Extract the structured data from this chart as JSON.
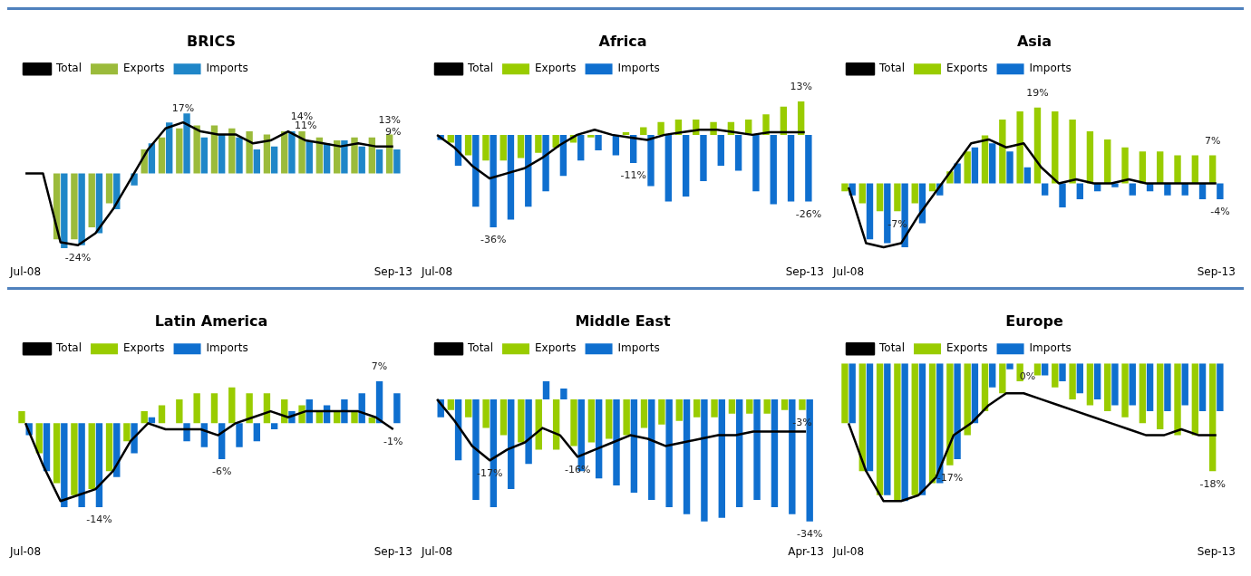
{
  "chart_data": [
    {
      "type": "bar",
      "title": "BRICS",
      "categories": [
        "Jul-08",
        null,
        null,
        null,
        null,
        null,
        null,
        null,
        null,
        null,
        null,
        null,
        null,
        null,
        null,
        null,
        null,
        null,
        null,
        null,
        null,
        "Sep-13"
      ],
      "legend": "top left",
      "grid": false,
      "tick_labels": "x",
      "series": [
        {
          "name": "Total",
          "type": "line",
          "color": "#000000",
          "values": [
            0,
            0,
            -23,
            -24,
            -20,
            -12,
            -2,
            8,
            15,
            17,
            14,
            13,
            13,
            10,
            11,
            14,
            11,
            10,
            9,
            10,
            9,
            9
          ],
          "value_labels": [
            null,
            null,
            null,
            "-24%",
            null,
            null,
            null,
            null,
            null,
            "17%",
            null,
            null,
            null,
            null,
            null,
            null,
            "11%",
            null,
            null,
            null,
            null,
            "9%"
          ]
        },
        {
          "name": "Exports",
          "color": "#9bbb3b",
          "values": [
            0,
            0,
            -22,
            -22,
            -18,
            -10,
            0,
            8,
            12,
            15,
            16,
            16,
            15,
            14,
            13,
            14,
            14,
            12,
            11,
            12,
            12,
            13
          ],
          "value_labels": [
            null,
            null,
            null,
            null,
            null,
            null,
            null,
            null,
            null,
            null,
            null,
            null,
            null,
            null,
            null,
            null,
            "14%",
            null,
            null,
            null,
            null,
            "13%"
          ]
        },
        {
          "name": "Imports",
          "color": "#1f86c8",
          "values": [
            0,
            0,
            -25,
            -24,
            -20,
            -12,
            -4,
            10,
            17,
            20,
            12,
            13,
            12,
            8,
            9,
            14,
            11,
            10,
            11,
            9,
            8,
            8
          ]
        }
      ]
    },
    {
      "type": "bar",
      "title": "Africa",
      "categories": [
        "Jul-08",
        null,
        null,
        null,
        null,
        null,
        null,
        null,
        null,
        null,
        null,
        null,
        null,
        null,
        null,
        null,
        null,
        null,
        null,
        null,
        null,
        "Sep-13"
      ],
      "legend": "top left",
      "grid": false,
      "tick_labels": "x",
      "series": [
        {
          "name": "Total",
          "type": "line",
          "color": "#000000",
          "values": [
            0,
            -5,
            -12,
            -17,
            -15,
            -13,
            -9,
            -4,
            0,
            2,
            0,
            -1,
            -2,
            0,
            1,
            2,
            2,
            1,
            0,
            1,
            1,
            1
          ]
        },
        {
          "name": "Exports",
          "color": "#99cc00",
          "values": [
            0,
            -3,
            -8,
            -10,
            -10,
            -9,
            -7,
            -5,
            -3,
            -1,
            0,
            1,
            3,
            5,
            6,
            6,
            5,
            5,
            6,
            8,
            11,
            13
          ],
          "value_labels": [
            null,
            null,
            null,
            null,
            null,
            null,
            null,
            null,
            null,
            null,
            null,
            null,
            null,
            null,
            null,
            null,
            null,
            null,
            null,
            null,
            null,
            "13%"
          ]
        },
        {
          "name": "Imports",
          "color": "#0f6fcf",
          "values": [
            -2,
            -12,
            -28,
            -36,
            -33,
            -28,
            -22,
            -16,
            -10,
            -6,
            -8,
            -11,
            -20,
            -26,
            -24,
            -18,
            -12,
            -14,
            -22,
            -27,
            -26,
            -26
          ],
          "value_labels": [
            null,
            null,
            null,
            "-36%",
            null,
            null,
            null,
            null,
            null,
            null,
            null,
            "-11%",
            null,
            null,
            null,
            null,
            null,
            null,
            null,
            null,
            null,
            "-26%"
          ]
        }
      ]
    },
    {
      "type": "bar",
      "title": "Asia",
      "categories": [
        "Jul-08",
        null,
        null,
        null,
        null,
        null,
        null,
        null,
        null,
        null,
        null,
        null,
        null,
        null,
        null,
        null,
        null,
        null,
        null,
        null,
        null,
        "Sep-13"
      ],
      "legend": "top left",
      "grid": false,
      "tick_labels": "x",
      "series": [
        {
          "name": "Total",
          "type": "line",
          "color": "#000000",
          "values": [
            -1,
            -15,
            -16,
            -15,
            -8,
            -2,
            4,
            10,
            11,
            9,
            10,
            4,
            0,
            1,
            0,
            0,
            1,
            0,
            0,
            0,
            0,
            0
          ]
        },
        {
          "name": "Exports",
          "color": "#99cc00",
          "values": [
            -2,
            -5,
            -7,
            -7,
            -5,
            -2,
            3,
            8,
            12,
            16,
            18,
            19,
            18,
            16,
            13,
            11,
            9,
            8,
            8,
            7,
            7,
            7
          ],
          "value_labels": [
            null,
            null,
            null,
            "-7%",
            null,
            null,
            null,
            null,
            null,
            null,
            null,
            "19%",
            null,
            null,
            null,
            null,
            null,
            null,
            null,
            null,
            null,
            "7%"
          ]
        },
        {
          "name": "Imports",
          "color": "#0f6fcf",
          "values": [
            -3,
            -14,
            -15,
            -16,
            -10,
            -3,
            5,
            9,
            10,
            8,
            4,
            -3,
            -6,
            -4,
            -2,
            -1,
            -3,
            -2,
            -3,
            -3,
            -4,
            -4
          ],
          "value_labels": [
            null,
            null,
            null,
            null,
            null,
            null,
            null,
            null,
            null,
            null,
            null,
            null,
            null,
            null,
            null,
            null,
            null,
            null,
            null,
            null,
            null,
            "-4%"
          ]
        }
      ]
    },
    {
      "type": "bar",
      "title": "Latin America",
      "categories": [
        "Jul-08",
        null,
        null,
        null,
        null,
        null,
        null,
        null,
        null,
        null,
        null,
        null,
        null,
        null,
        null,
        null,
        null,
        null,
        null,
        null,
        null,
        "Sep-13"
      ],
      "legend": "top left",
      "grid": false,
      "tick_labels": "x",
      "series": [
        {
          "name": "Total",
          "type": "line",
          "color": "#000000",
          "values": [
            0,
            -7,
            -13,
            -12,
            -11,
            -8,
            -3,
            0,
            -1,
            -1,
            -1,
            -2,
            0,
            1,
            2,
            1,
            2,
            2,
            2,
            2,
            1,
            -1
          ],
          "value_labels": [
            null,
            null,
            null,
            null,
            null,
            null,
            null,
            null,
            null,
            null,
            null,
            null,
            null,
            null,
            null,
            null,
            null,
            null,
            null,
            null,
            null,
            "-1%"
          ]
        },
        {
          "name": "Exports",
          "color": "#99cc00",
          "values": [
            2,
            -5,
            -10,
            -12,
            -11,
            -8,
            -3,
            2,
            3,
            4,
            5,
            5,
            6,
            5,
            5,
            4,
            3,
            2,
            2,
            2,
            1,
            0
          ]
        },
        {
          "name": "Imports",
          "color": "#0f6fcf",
          "values": [
            -2,
            -8,
            -14,
            -14,
            -14,
            -9,
            -5,
            1,
            0,
            -3,
            -4,
            -6,
            -4,
            -3,
            -1,
            2,
            4,
            3,
            4,
            5,
            7,
            5
          ],
          "value_labels": [
            null,
            null,
            null,
            null,
            "-14%",
            null,
            null,
            null,
            null,
            null,
            null,
            "-6%",
            null,
            null,
            null,
            null,
            null,
            null,
            null,
            null,
            "7%",
            null
          ]
        }
      ]
    },
    {
      "type": "bar",
      "title": "Middle East",
      "categories": [
        "Jul-08",
        null,
        null,
        null,
        null,
        null,
        null,
        null,
        null,
        null,
        null,
        null,
        null,
        null,
        null,
        null,
        null,
        null,
        null,
        null,
        null,
        "Apr-13"
      ],
      "legend": "top left",
      "grid": false,
      "tick_labels": "x",
      "series": [
        {
          "name": "Total",
          "type": "line",
          "color": "#000000",
          "values": [
            0,
            -6,
            -13,
            -17,
            -14,
            -12,
            -8,
            -10,
            -16,
            -14,
            -12,
            -10,
            -11,
            -13,
            -12,
            -11,
            -10,
            -10,
            -9,
            -9,
            -9,
            -9
          ],
          "value_labels": [
            null,
            null,
            null,
            "-17%",
            null,
            null,
            null,
            null,
            "-16%",
            null,
            null,
            null,
            null,
            null,
            null,
            null,
            null,
            null,
            null,
            null,
            null,
            null
          ]
        },
        {
          "name": "Exports",
          "color": "#99cc00",
          "values": [
            0,
            -3,
            -5,
            -8,
            -10,
            -12,
            -14,
            -14,
            -13,
            -12,
            -11,
            -10,
            -8,
            -7,
            -6,
            -5,
            -5,
            -4,
            -4,
            -4,
            -3,
            -3
          ],
          "value_labels": [
            null,
            null,
            null,
            null,
            null,
            null,
            null,
            null,
            null,
            null,
            null,
            null,
            null,
            null,
            null,
            null,
            null,
            null,
            null,
            null,
            null,
            "-3%"
          ]
        },
        {
          "name": "Imports",
          "color": "#0f6fcf",
          "values": [
            -5,
            -17,
            -28,
            -30,
            -25,
            -18,
            5,
            3,
            -20,
            -22,
            -24,
            -26,
            -28,
            -30,
            -32,
            -34,
            -33,
            -30,
            -28,
            -30,
            -32,
            -34
          ],
          "value_labels": [
            null,
            null,
            null,
            null,
            null,
            null,
            null,
            null,
            null,
            null,
            null,
            null,
            null,
            null,
            null,
            null,
            null,
            null,
            null,
            null,
            null,
            "-34%"
          ]
        }
      ]
    },
    {
      "type": "bar",
      "title": "Europe",
      "categories": [
        "Jul-08",
        null,
        null,
        null,
        null,
        null,
        null,
        null,
        null,
        null,
        null,
        null,
        null,
        null,
        null,
        null,
        null,
        null,
        null,
        null,
        null,
        "Sep-13"
      ],
      "legend": "top left",
      "grid": false,
      "tick_labels": "x",
      "series": [
        {
          "name": "Total",
          "type": "line",
          "color": "#000000",
          "values": [
            -10,
            -18,
            -23,
            -23,
            -22,
            -19,
            -12,
            -10,
            -7,
            -5,
            -5,
            -6,
            -7,
            -8,
            -9,
            -10,
            -11,
            -12,
            -12,
            -11,
            -12,
            -12
          ]
        },
        {
          "name": "Exports",
          "color": "#99cc00",
          "values": [
            -10,
            -18,
            -22,
            -23,
            -22,
            -20,
            -17,
            -12,
            -8,
            -5,
            -3,
            -2,
            -4,
            -6,
            -7,
            -8,
            -9,
            -10,
            -11,
            -12,
            -12,
            -18
          ],
          "value_labels": [
            null,
            null,
            null,
            null,
            null,
            null,
            "-17%",
            null,
            null,
            null,
            null,
            null,
            null,
            null,
            null,
            null,
            null,
            null,
            null,
            null,
            null,
            "-18%"
          ]
        },
        {
          "name": "Imports",
          "color": "#0f6fcf",
          "values": [
            -10,
            -18,
            -22,
            -23,
            -22,
            -20,
            -16,
            -10,
            -4,
            -1,
            0,
            -2,
            -3,
            -5,
            -6,
            -7,
            -7,
            -8,
            -8,
            -7,
            -8,
            -8
          ],
          "value_labels": [
            null,
            null,
            null,
            null,
            null,
            null,
            null,
            null,
            null,
            null,
            "0%",
            null,
            null,
            null,
            null,
            null,
            null,
            null,
            null,
            null,
            null,
            null
          ]
        }
      ]
    }
  ]
}
